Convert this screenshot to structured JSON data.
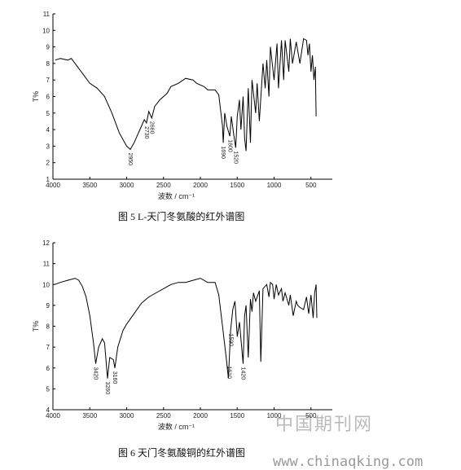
{
  "chart_data": [
    {
      "type": "line",
      "caption": "图 5 L-天门冬氨酸的红外谱图",
      "xlabel": "波数 / cm⁻¹",
      "ylabel": "T%",
      "xlim": [
        4000,
        210
      ],
      "ylim": [
        1,
        11
      ],
      "xticks": [
        4000,
        3500,
        3000,
        2500,
        2000,
        1500,
        1000,
        500
      ],
      "yticks": [
        1,
        2,
        3,
        4,
        5,
        6,
        7,
        8,
        9,
        10,
        11
      ],
      "x": [
        3970,
        3900,
        3800,
        3750,
        3700,
        3600,
        3500,
        3400,
        3300,
        3200,
        3100,
        3000,
        2950,
        2900,
        2850,
        2800,
        2760,
        2730,
        2700,
        2660,
        2620,
        2550,
        2500,
        2450,
        2400,
        2300,
        2200,
        2100,
        2050,
        2000,
        1950,
        1900,
        1800,
        1750,
        1700,
        1690,
        1670,
        1640,
        1600,
        1580,
        1550,
        1520,
        1500,
        1470,
        1450,
        1420,
        1400,
        1380,
        1350,
        1320,
        1300,
        1250,
        1230,
        1200,
        1150,
        1120,
        1100,
        1070,
        1050,
        1000,
        960,
        940,
        900,
        870,
        850,
        800,
        780,
        750,
        700,
        650,
        600,
        560,
        540,
        520,
        500,
        480,
        460,
        440,
        430
      ],
      "series": [
        {
          "color": "#000000",
          "values": [
            8.2,
            8.3,
            8.2,
            8.3,
            8.0,
            7.4,
            6.8,
            6.5,
            6.0,
            5.0,
            3.8,
            3.0,
            2.8,
            3.2,
            3.7,
            4.2,
            4.6,
            4.4,
            5.1,
            4.7,
            5.4,
            5.8,
            6.0,
            6.2,
            6.6,
            6.8,
            7.1,
            7.0,
            6.8,
            6.7,
            6.6,
            6.4,
            6.4,
            6.1,
            4.2,
            3.2,
            5.0,
            4.2,
            3.6,
            4.8,
            3.8,
            2.9,
            4.8,
            5.8,
            4.0,
            6.0,
            3.5,
            2.7,
            6.5,
            3.2,
            7.0,
            5.0,
            6.8,
            4.5,
            8.0,
            6.5,
            8.2,
            6.0,
            9.0,
            7.0,
            9.2,
            6.5,
            9.4,
            7.0,
            9.4,
            7.5,
            9.5,
            8.0,
            9.3,
            8.0,
            9.5,
            9.4,
            8.5,
            9.2,
            7.5,
            8.5,
            7.0,
            7.8,
            4.8
          ]
        }
      ],
      "annotations": [
        "2950",
        "2730",
        "2660",
        "1690",
        "1600",
        "1520"
      ]
    },
    {
      "type": "line",
      "caption": "图 6 天门冬氨酸铜的红外谱图",
      "xlabel": "波数 / cm⁻¹",
      "ylabel": "T%",
      "xlim": [
        4000,
        210
      ],
      "ylim": [
        4,
        12
      ],
      "xticks": [
        4000,
        3500,
        3000,
        2500,
        2000,
        1500,
        1000,
        500
      ],
      "yticks": [
        4,
        5,
        6,
        7,
        8,
        9,
        10,
        11,
        12
      ],
      "x": [
        3980,
        3900,
        3800,
        3700,
        3650,
        3600,
        3550,
        3500,
        3450,
        3420,
        3380,
        3330,
        3300,
        3260,
        3230,
        3180,
        3160,
        3120,
        3050,
        3000,
        2900,
        2800,
        2700,
        2600,
        2500,
        2400,
        2300,
        2200,
        2100,
        2000,
        1900,
        1800,
        1750,
        1700,
        1650,
        1620,
        1600,
        1590,
        1560,
        1530,
        1500,
        1470,
        1440,
        1420,
        1400,
        1380,
        1350,
        1320,
        1300,
        1280,
        1250,
        1200,
        1180,
        1150,
        1100,
        1070,
        1050,
        1020,
        1000,
        970,
        940,
        900,
        880,
        850,
        800,
        780,
        740,
        700,
        680,
        650,
        600,
        560,
        530,
        500,
        470,
        450,
        430,
        420
      ],
      "series": [
        {
          "color": "#000000",
          "values": [
            10.0,
            10.1,
            10.2,
            10.3,
            10.2,
            9.9,
            9.4,
            8.5,
            7.2,
            6.2,
            7.0,
            7.4,
            7.2,
            5.5,
            6.5,
            6.4,
            6.0,
            7.0,
            7.8,
            8.1,
            8.6,
            9.1,
            9.4,
            9.6,
            9.8,
            10.0,
            10.1,
            10.1,
            10.2,
            10.3,
            10.1,
            10.1,
            9.5,
            8.0,
            6.5,
            5.5,
            7.0,
            7.8,
            8.8,
            9.2,
            7.5,
            8.2,
            7.0,
            6.2,
            8.5,
            9.0,
            6.5,
            9.3,
            8.7,
            9.6,
            9.2,
            9.7,
            6.3,
            9.8,
            10.0,
            9.4,
            10.1,
            10.0,
            9.3,
            10.0,
            9.5,
            9.8,
            9.2,
            9.6,
            9.0,
            9.5,
            8.5,
            9.2,
            9.0,
            8.9,
            8.8,
            9.4,
            8.6,
            9.5,
            8.4,
            9.6,
            10.0,
            8.4
          ]
        }
      ],
      "annotations": [
        "3420",
        "3260",
        "3160",
        "1610",
        "1590",
        "1420"
      ]
    }
  ],
  "watermark": {
    "title": "中国期刊网",
    "url": "www.chinaqking.com"
  }
}
